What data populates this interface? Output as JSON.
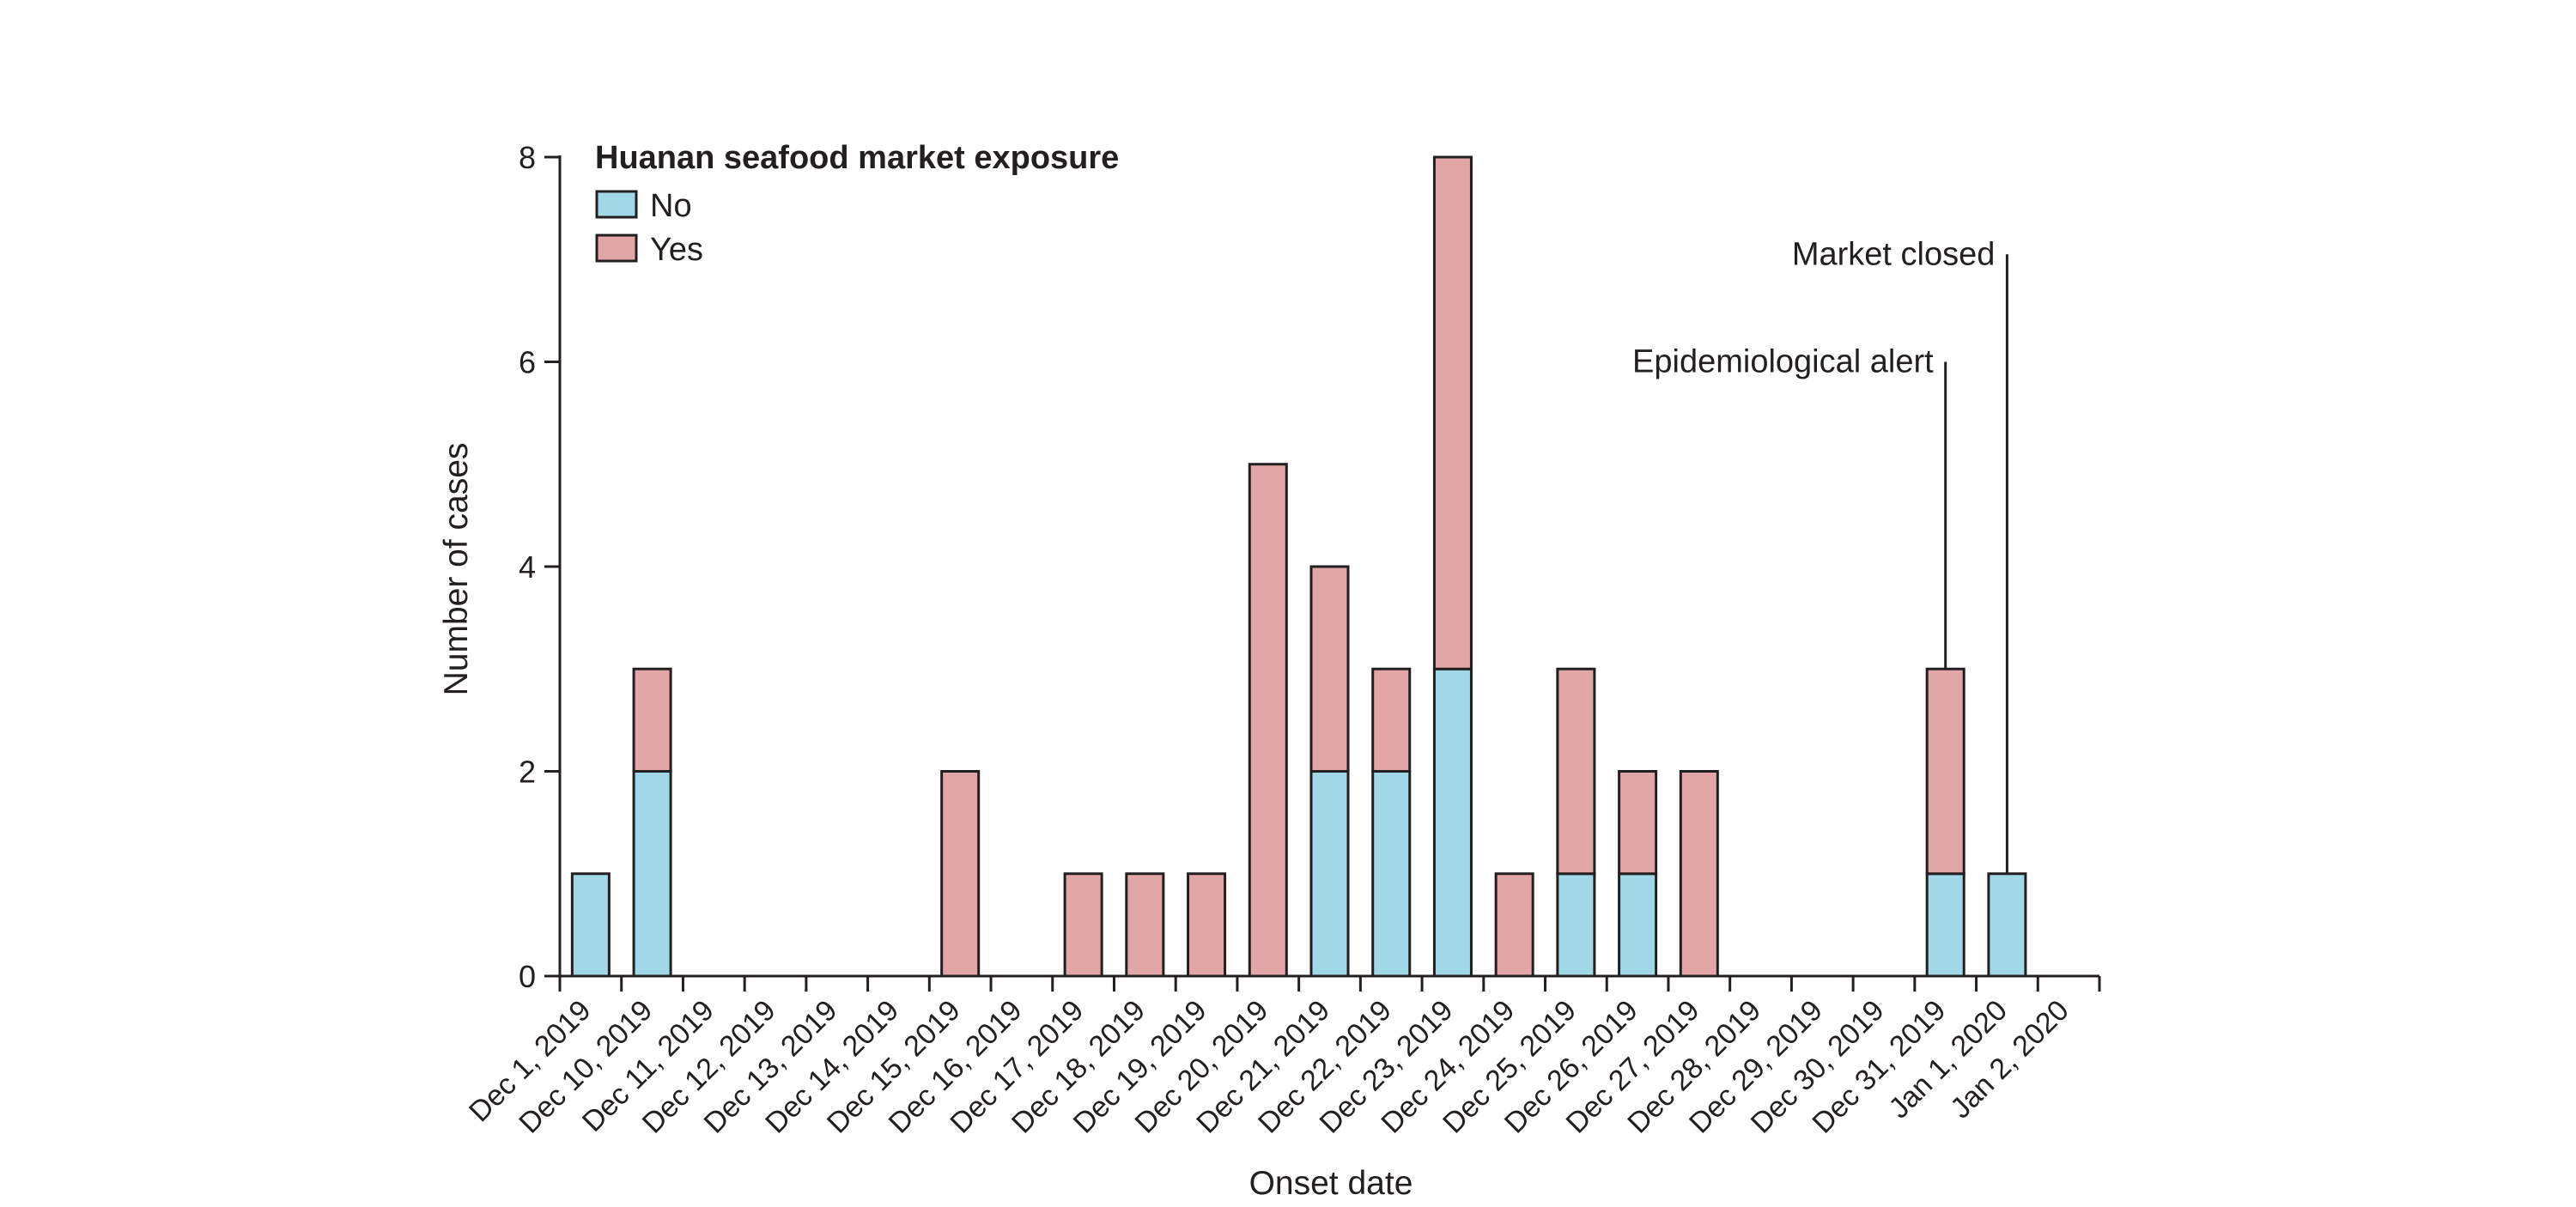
{
  "chart_data": {
    "type": "bar",
    "stacked": true,
    "categories": [
      "Dec 1, 2019",
      "Dec 10, 2019",
      "Dec 11, 2019",
      "Dec 12, 2019",
      "Dec 13, 2019",
      "Dec 14, 2019",
      "Dec 15, 2019",
      "Dec 16, 2019",
      "Dec 17, 2019",
      "Dec 18, 2019",
      "Dec 19, 2019",
      "Dec 20, 2019",
      "Dec 21, 2019",
      "Dec 22, 2019",
      "Dec 23, 2019",
      "Dec 24, 2019",
      "Dec 25, 2019",
      "Dec 26, 2019",
      "Dec 27, 2019",
      "Dec 28, 2019",
      "Dec 29, 2019",
      "Dec 30, 2019",
      "Dec 31, 2019",
      "Jan 1, 2020",
      "Jan 2, 2020"
    ],
    "series": [
      {
        "name": "No",
        "color": "#a0d8e8",
        "values": [
          1,
          2,
          0,
          0,
          0,
          0,
          0,
          0,
          0,
          0,
          0,
          0,
          2,
          2,
          3,
          0,
          1,
          1,
          0,
          0,
          0,
          0,
          1,
          1,
          0
        ]
      },
      {
        "name": "Yes",
        "color": "#e3a6a6",
        "values": [
          0,
          1,
          0,
          0,
          0,
          0,
          2,
          0,
          1,
          1,
          1,
          5,
          2,
          1,
          5,
          1,
          2,
          1,
          2,
          0,
          0,
          0,
          2,
          0,
          0
        ]
      }
    ],
    "title": "",
    "xlabel": "Onset date",
    "ylabel": "Number of cases",
    "ylim": [
      0,
      8
    ],
    "yticks": [
      0,
      2,
      4,
      6,
      8
    ],
    "grid": false,
    "legend": {
      "title": "Huanan seafood market exposure",
      "position": "top-left"
    },
    "annotations": [
      {
        "text": "Epidemiological alert",
        "category": "Dec 31, 2019",
        "value": 6
      },
      {
        "text": "Market closed",
        "category": "Jan 1, 2020",
        "value": 7.05
      }
    ]
  }
}
